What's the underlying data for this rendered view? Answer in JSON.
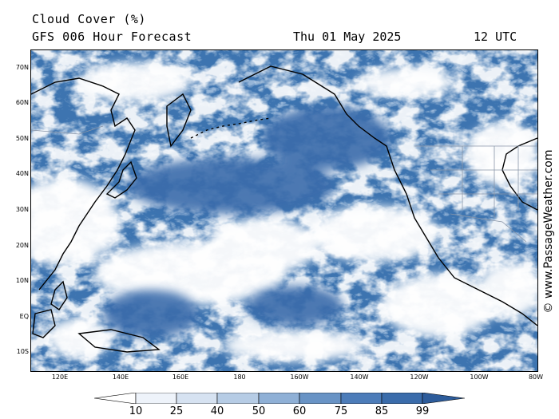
{
  "header": {
    "title": "Cloud Cover (%)",
    "subtitle": "GFS 006 Hour Forecast",
    "date": "Thu 01 May 2025",
    "time": "12 UTC"
  },
  "credit": "© www.PassageWeather.com",
  "map": {
    "lat_labels": [
      "70N",
      "60N",
      "50N",
      "40N",
      "30N",
      "20N",
      "10N",
      "EQ",
      "10S"
    ],
    "lon_labels": [
      "120E",
      "140E",
      "160E",
      "180",
      "160W",
      "140W",
      "120W",
      "100W",
      "80W"
    ]
  },
  "legend": {
    "levels": [
      "10",
      "25",
      "40",
      "50",
      "60",
      "75",
      "85",
      "99"
    ],
    "colors": [
      "#ffffff",
      "#eef3fa",
      "#d6e2f1",
      "#b6cce5",
      "#8fb0d6",
      "#6893c5",
      "#4c7cb9",
      "#3a6cab",
      "#2d5c9b"
    ]
  }
}
